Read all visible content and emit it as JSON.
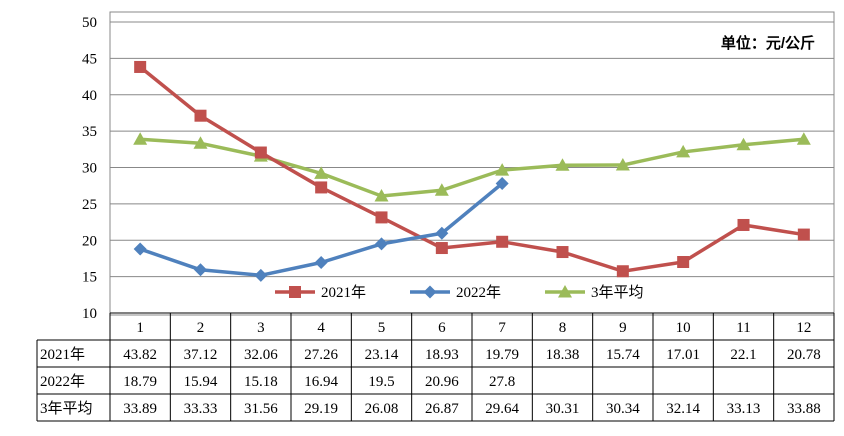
{
  "chart_data": {
    "type": "line",
    "unit_label": "单位：元/公斤",
    "categories": [
      "1",
      "2",
      "3",
      "4",
      "5",
      "6",
      "7",
      "8",
      "9",
      "10",
      "11",
      "12"
    ],
    "ylim": [
      10,
      50
    ],
    "yticks": [
      10,
      15,
      20,
      25,
      30,
      35,
      40,
      45,
      50
    ],
    "grid": true,
    "legend_position": "bottom-center",
    "series": [
      {
        "name": "2021年",
        "color": "#c0504d",
        "marker": "square",
        "values": [
          43.82,
          37.12,
          32.06,
          27.26,
          23.14,
          18.93,
          19.79,
          18.38,
          15.74,
          17.01,
          22.1,
          20.78
        ]
      },
      {
        "name": "2022年",
        "color": "#4f81bd",
        "marker": "diamond",
        "values": [
          18.79,
          15.94,
          15.18,
          16.94,
          19.5,
          20.96,
          27.8,
          null,
          null,
          null,
          null,
          null
        ]
      },
      {
        "name": "3年平均",
        "color": "#9bbb59",
        "marker": "triangle",
        "values": [
          33.89,
          33.33,
          31.56,
          29.19,
          26.08,
          26.87,
          29.64,
          30.31,
          30.34,
          32.14,
          33.13,
          33.88
        ]
      }
    ]
  }
}
